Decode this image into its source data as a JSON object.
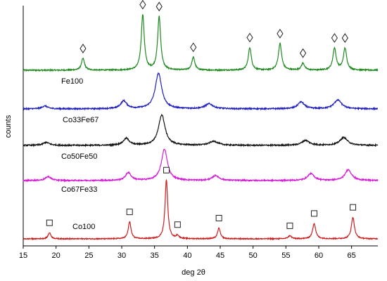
{
  "chart_data": {
    "type": "line",
    "xlabel": "deg 2θ",
    "ylabel": "counts",
    "xlim": [
      15,
      69
    ],
    "x_ticks": [
      15,
      20,
      25,
      30,
      35,
      40,
      45,
      50,
      55,
      60,
      65
    ],
    "y_ticks_shown": false,
    "legend": "none",
    "series": [
      {
        "name": "Fe100",
        "color": "#1f8a1f",
        "baseline": 0,
        "amplitude": 1.0,
        "peaks": [
          {
            "x": 24.1,
            "h": 0.12,
            "w": 0.28
          },
          {
            "x": 33.2,
            "h": 0.56,
            "w": 0.28
          },
          {
            "x": 35.7,
            "h": 0.54,
            "w": 0.28
          },
          {
            "x": 40.9,
            "h": 0.13,
            "w": 0.28
          },
          {
            "x": 49.5,
            "h": 0.23,
            "w": 0.28
          },
          {
            "x": 54.1,
            "h": 0.27,
            "w": 0.3
          },
          {
            "x": 57.6,
            "h": 0.07,
            "w": 0.3
          },
          {
            "x": 62.4,
            "h": 0.22,
            "w": 0.3
          },
          {
            "x": 64.0,
            "h": 0.22,
            "w": 0.3
          }
        ],
        "markers": [
          {
            "x": 24.1,
            "symbol": "diamond"
          },
          {
            "x": 33.2,
            "symbol": "diamond"
          },
          {
            "x": 35.7,
            "symbol": "diamond"
          },
          {
            "x": 40.9,
            "symbol": "diamond"
          },
          {
            "x": 49.5,
            "symbol": "diamond"
          },
          {
            "x": 54.1,
            "symbol": "diamond"
          },
          {
            "x": 57.6,
            "symbol": "diamond"
          },
          {
            "x": 62.4,
            "symbol": "diamond"
          },
          {
            "x": 64.0,
            "symbol": "diamond"
          }
        ]
      },
      {
        "name": "Co33Fe67",
        "color": "#1f1fbf",
        "baseline": 0,
        "amplitude": 1.0,
        "peaks": [
          {
            "x": 18.3,
            "h": 0.03,
            "w": 0.5
          },
          {
            "x": 30.3,
            "h": 0.08,
            "w": 0.55
          },
          {
            "x": 35.6,
            "h": 0.36,
            "w": 0.6
          },
          {
            "x": 43.3,
            "h": 0.05,
            "w": 0.7
          },
          {
            "x": 57.3,
            "h": 0.07,
            "w": 0.6
          },
          {
            "x": 62.9,
            "h": 0.09,
            "w": 0.7
          }
        ],
        "markers": []
      },
      {
        "name": "Co50Fe50",
        "color": "#111111",
        "baseline": 0,
        "amplitude": 1.0,
        "peaks": [
          {
            "x": 18.5,
            "h": 0.03,
            "w": 0.6
          },
          {
            "x": 30.7,
            "h": 0.07,
            "w": 0.55
          },
          {
            "x": 36.1,
            "h": 0.31,
            "w": 0.6
          },
          {
            "x": 44.0,
            "h": 0.04,
            "w": 0.8
          },
          {
            "x": 58.0,
            "h": 0.05,
            "w": 0.7
          },
          {
            "x": 63.8,
            "h": 0.08,
            "w": 0.7
          }
        ],
        "markers": []
      },
      {
        "name": "Co67Fe33",
        "color": "#d41ed4",
        "baseline": 0,
        "amplitude": 1.0,
        "peaks": [
          {
            "x": 18.8,
            "h": 0.04,
            "w": 0.5
          },
          {
            "x": 31.0,
            "h": 0.08,
            "w": 0.5
          },
          {
            "x": 36.5,
            "h": 0.32,
            "w": 0.55
          },
          {
            "x": 44.3,
            "h": 0.05,
            "w": 0.6
          },
          {
            "x": 58.8,
            "h": 0.07,
            "w": 0.6
          },
          {
            "x": 64.5,
            "h": 0.11,
            "w": 0.6
          }
        ],
        "markers": []
      },
      {
        "name": "Co100",
        "color": "#cc1f1f",
        "baseline": 0,
        "amplitude": 1.0,
        "peaks": [
          {
            "x": 19.0,
            "h": 0.08,
            "w": 0.25
          },
          {
            "x": 31.2,
            "h": 0.22,
            "w": 0.25
          },
          {
            "x": 36.8,
            "h": 0.76,
            "w": 0.25
          },
          {
            "x": 38.5,
            "h": 0.04,
            "w": 0.25
          },
          {
            "x": 44.8,
            "h": 0.14,
            "w": 0.25
          },
          {
            "x": 55.6,
            "h": 0.04,
            "w": 0.3
          },
          {
            "x": 59.3,
            "h": 0.2,
            "w": 0.28
          },
          {
            "x": 65.2,
            "h": 0.28,
            "w": 0.28
          }
        ],
        "markers": [
          {
            "x": 19.0,
            "symbol": "square"
          },
          {
            "x": 31.2,
            "symbol": "square"
          },
          {
            "x": 36.8,
            "symbol": "square"
          },
          {
            "x": 38.5,
            "symbol": "square"
          },
          {
            "x": 44.8,
            "symbol": "square"
          },
          {
            "x": 55.6,
            "symbol": "square"
          },
          {
            "x": 59.3,
            "symbol": "square"
          },
          {
            "x": 65.2,
            "symbol": "square"
          }
        ]
      }
    ]
  }
}
